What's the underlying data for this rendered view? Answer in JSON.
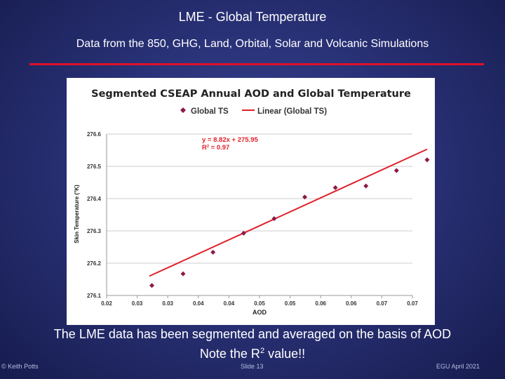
{
  "slide": {
    "title": "LME - Global Temperature",
    "subtitle": "Data from the 850, GHG, Land, Orbital, Solar and Volcanic Simulations",
    "caption_line1": "The LME data has been segmented and averaged on the basis of AOD",
    "caption_line2_prefix": "Note the R",
    "caption_line2_sup": "2",
    "caption_line2_suffix": " value!!",
    "footer_left": "© Keith Potts",
    "footer_center": "Slide 13",
    "footer_right": "EGU April 2021"
  },
  "colors": {
    "background": "#2a3278",
    "rule": "#e0102a",
    "marker": "#8b1a4a",
    "trendline": "#e0202a",
    "equation": "#e0202a"
  },
  "chart_data": {
    "type": "scatter",
    "title": "Segmented CSEAP Annual AOD and Global Temperature",
    "xlabel": "AOD",
    "ylabel": "Skin Temperature (°K)",
    "xlim": [
      0.02,
      0.07
    ],
    "ylim": [
      276.1,
      276.6
    ],
    "x_ticks": [
      0.02,
      0.025,
      0.03,
      0.035,
      0.04,
      0.045,
      0.05,
      0.055,
      0.06,
      0.065,
      0.07
    ],
    "x_tick_labels": [
      "0.02",
      "0.03",
      "0.03",
      "0.04",
      "0.04",
      "0.05",
      "0.05",
      "0.06",
      "0.06",
      "0.07",
      "0.07"
    ],
    "y_ticks": [
      276.1,
      276.2,
      276.3,
      276.4,
      276.5,
      276.6
    ],
    "y_tick_labels": [
      "276.1",
      "276.2",
      "276.3",
      "276.4",
      "276.5",
      "276.6"
    ],
    "grid": "horizontal",
    "legend": [
      {
        "label": "Global TS",
        "kind": "marker"
      },
      {
        "label": "Linear (Global TS)",
        "kind": "line"
      }
    ],
    "series": [
      {
        "name": "Global TS",
        "x": [
          0.0274,
          0.0325,
          0.0374,
          0.0424,
          0.0474,
          0.0524,
          0.0574,
          0.0624,
          0.0674,
          0.0724
        ],
        "y": [
          276.131,
          276.167,
          276.234,
          276.293,
          276.338,
          276.405,
          276.434,
          276.439,
          276.487,
          276.52
        ]
      }
    ],
    "trendline": {
      "name": "Linear (Global TS)",
      "type": "linear",
      "x_range": [
        0.027,
        0.0724
      ],
      "y_range": [
        276.16,
        276.553
      ],
      "equation": "y = 8.82x + 275.95",
      "r_squared": "R² = 0.97"
    }
  }
}
